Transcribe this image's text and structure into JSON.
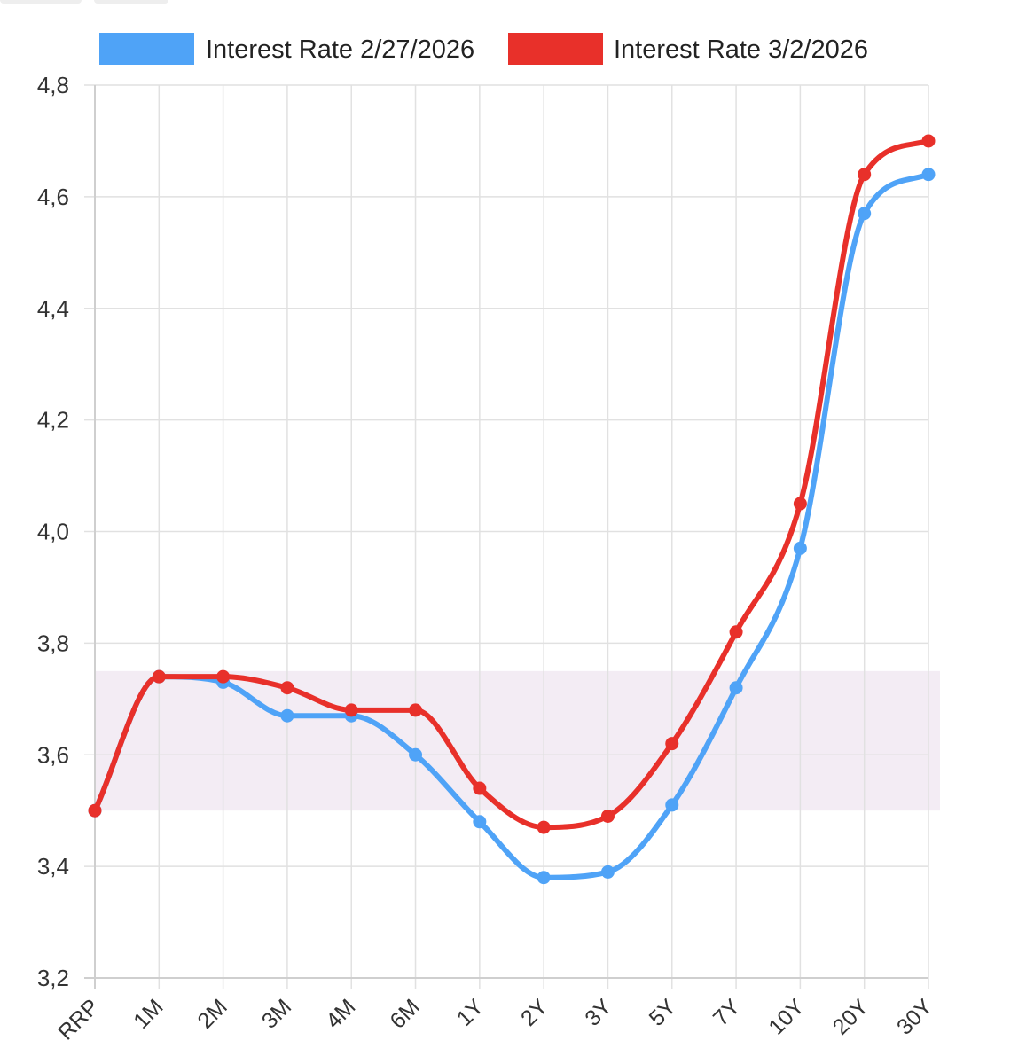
{
  "chart_data": {
    "type": "line",
    "title": "",
    "xlabel": "",
    "ylabel": "",
    "categories": [
      "RRP",
      "1M",
      "2M",
      "3M",
      "4M",
      "6M",
      "1Y",
      "2Y",
      "3Y",
      "5Y",
      "7Y",
      "10Y",
      "20Y",
      "30Y"
    ],
    "ylim": [
      3.2,
      4.8
    ],
    "yticks": [
      "3,2",
      "3,4",
      "3,6",
      "3,8",
      "4,0",
      "4,2",
      "4,4",
      "4,6",
      "4,8"
    ],
    "yticks_values": [
      3.2,
      3.4,
      3.6,
      3.8,
      4.0,
      4.2,
      4.4,
      4.6,
      4.8
    ],
    "grid": true,
    "legend_position": "top",
    "band": {
      "from": 3.5,
      "to": 3.75,
      "color": "#f3ecf4"
    },
    "series": [
      {
        "name": "Interest Rate 2/27/2026",
        "color": "#4fa3f7",
        "values": [
          3.5,
          3.74,
          3.73,
          3.67,
          3.67,
          3.6,
          3.48,
          3.38,
          3.39,
          3.51,
          3.72,
          3.97,
          4.57,
          4.64
        ]
      },
      {
        "name": "Interest Rate 3/2/2026",
        "color": "#e8302a",
        "values": [
          3.5,
          3.74,
          3.74,
          3.72,
          3.68,
          3.68,
          3.54,
          3.47,
          3.49,
          3.62,
          3.82,
          4.05,
          4.64,
          4.7
        ]
      }
    ]
  }
}
